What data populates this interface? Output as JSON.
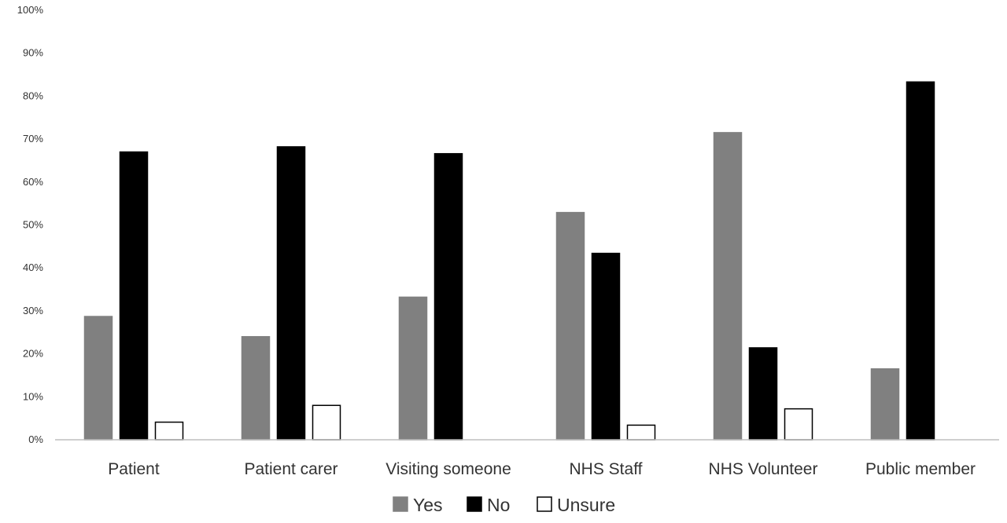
{
  "chart_data": {
    "type": "bar",
    "categories": [
      "Patient",
      "Patient carer",
      "Visiting someone",
      "NHS Staff",
      "NHS Volunteer",
      "Public member"
    ],
    "series": [
      {
        "name": "Yes",
        "values": [
          28.7,
          24.0,
          33.2,
          52.9,
          71.5,
          16.5
        ],
        "color": "#808080",
        "stroke": "#808080"
      },
      {
        "name": "No",
        "values": [
          67.0,
          68.2,
          66.6,
          43.4,
          21.4,
          83.3
        ],
        "color": "#000000",
        "stroke": "#000000"
      },
      {
        "name": "Unsure",
        "values": [
          4.1,
          8.0,
          0,
          3.4,
          7.2,
          0
        ],
        "color": "#ffffff",
        "stroke": "#000000"
      }
    ],
    "yticks": [
      "0%",
      "10%",
      "20%",
      "30%",
      "40%",
      "50%",
      "60%",
      "70%",
      "80%",
      "90%",
      "100%"
    ],
    "ylim": [
      0,
      100
    ],
    "grid": false,
    "legend_position": "bottom"
  }
}
